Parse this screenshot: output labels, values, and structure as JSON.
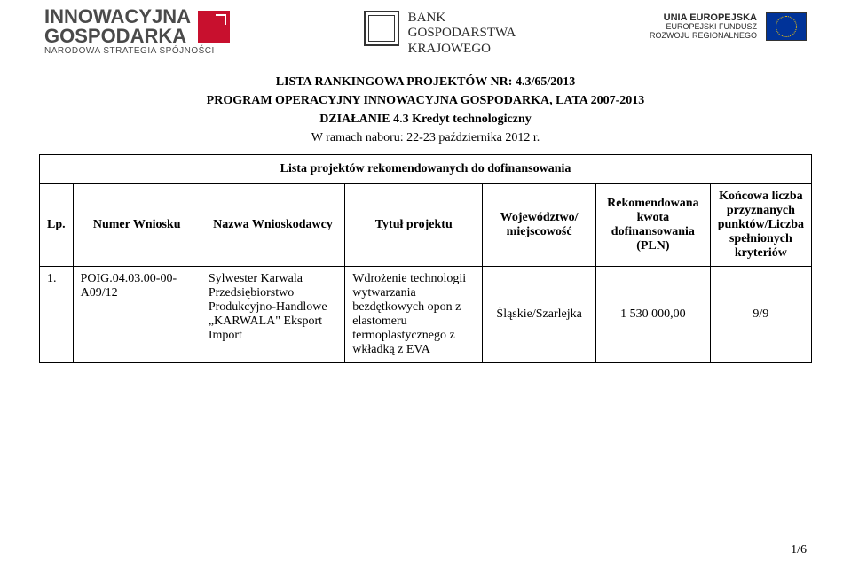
{
  "logos": {
    "left": {
      "line1": "INNOWACYJNA",
      "line2": "GOSPODARKA",
      "sub": "NARODOWA STRATEGIA SPÓJNOŚCI"
    },
    "center": {
      "line1": "BANK",
      "line2": "GOSPODARSTWA",
      "line3": "KRAJOWEGO"
    },
    "right": {
      "line1": "UNIA EUROPEJSKA",
      "line2": "EUROPEJSKI FUNDUSZ",
      "line3": "ROZWOJU REGIONALNEGO"
    }
  },
  "title": {
    "line1": "LISTA RANKINGOWA PROJEKTÓW NR: 4.3/65/2013",
    "line2": "PROGRAM OPERACYJNY INNOWACYJNA GOSPODARKA, LATA 2007-2013",
    "line3": "DZIAŁANIE 4.3 Kredyt technologiczny",
    "line4": "W ramach naboru: 22-23 października 2012 r."
  },
  "table": {
    "caption": "Lista projektów rekomendowanych do dofinansowania",
    "headers": {
      "lp": "Lp.",
      "num": "Numer Wniosku",
      "name": "Nazwa Wnioskodawcy",
      "title": "Tytuł projektu",
      "loc": "Województwo/ miejscowość",
      "amt": "Rekomendowana kwota dofinansowania (PLN)",
      "score": "Końcowa liczba przyznanych punktów/Liczba spełnionych kryteriów"
    },
    "rows": [
      {
        "lp": "1.",
        "num": "POIG.04.03.00-00-A09/12",
        "name": "Sylwester Karwala Przedsiębiorstwo Produkcyjno-Handlowe „KARWALA\" Eksport Import",
        "title": "Wdrożenie technologii wytwarzania bezdętkowych opon z elastomeru termoplastycznego z wkładką z EVA",
        "loc": "Śląskie/Szarlejka",
        "amt": "1 530 000,00",
        "score": "9/9"
      }
    ]
  },
  "page": "1/6",
  "colors": {
    "text": "#000000",
    "bg": "#ffffff",
    "border": "#000000",
    "logo_red": "#c8102e",
    "eu_blue": "#003399",
    "eu_gold": "#ffcc00",
    "logo_gray": "#4a4a4a"
  }
}
